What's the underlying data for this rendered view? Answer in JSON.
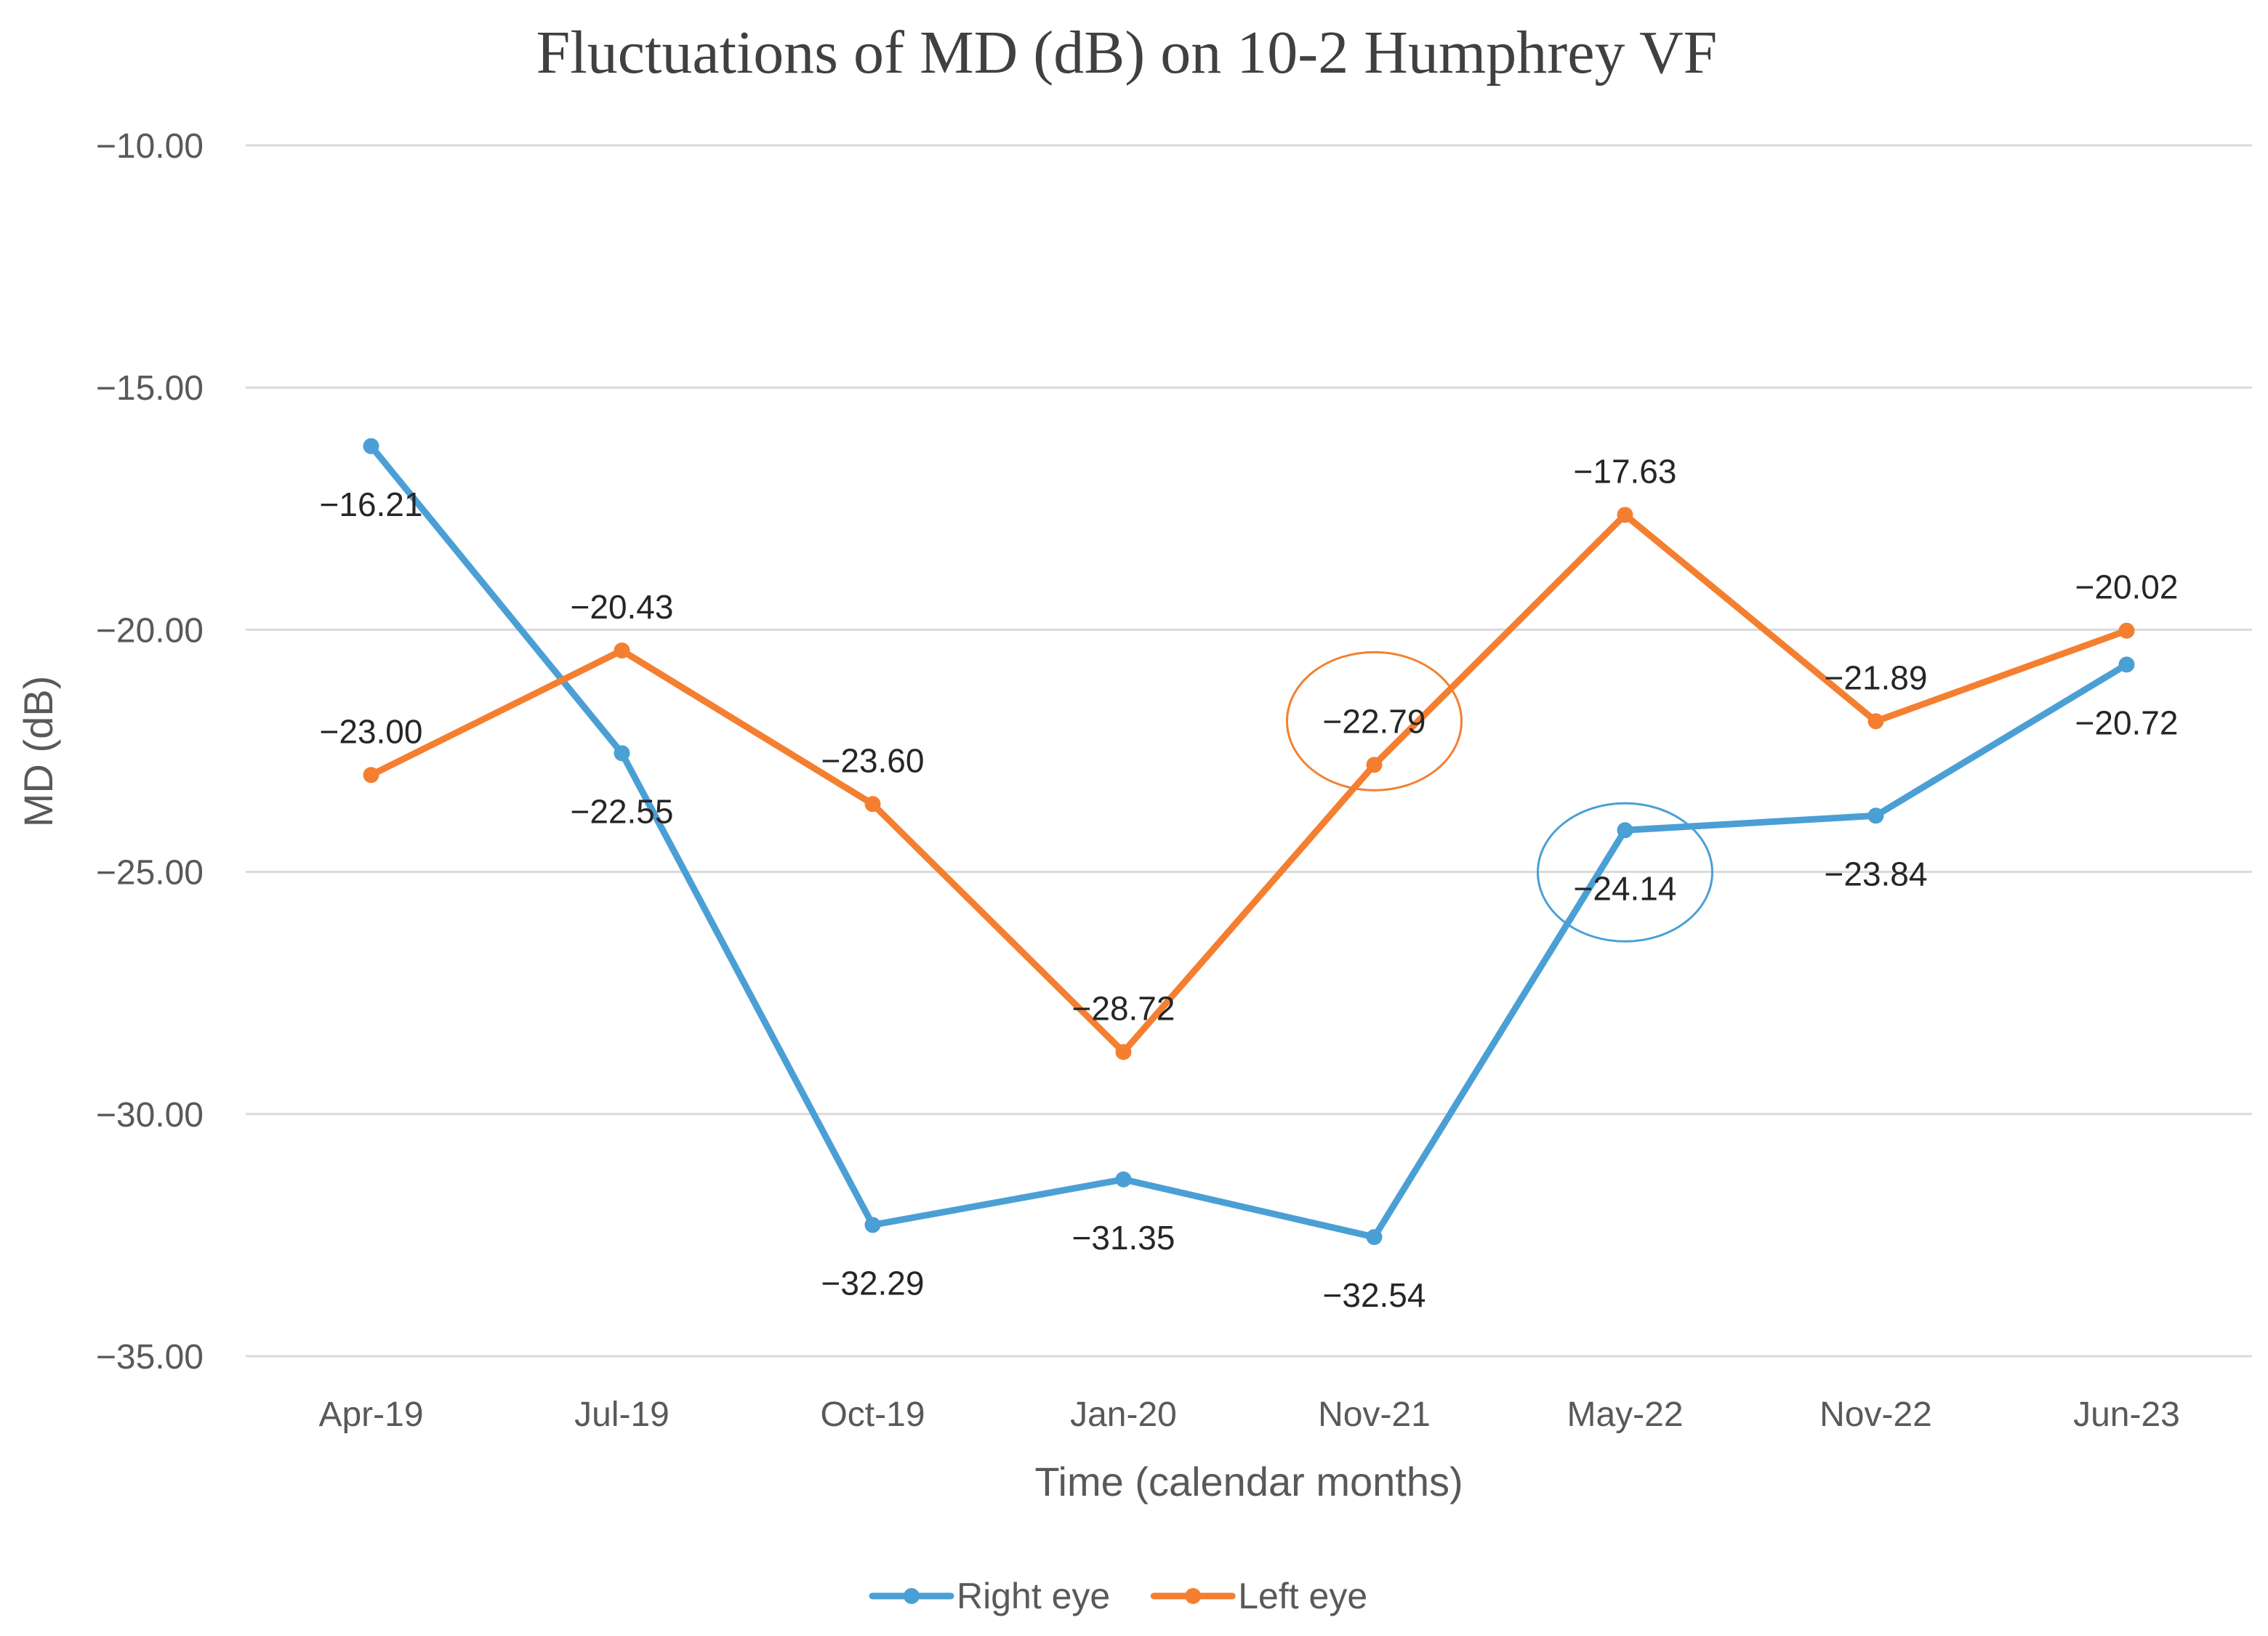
{
  "chart_data": {
    "type": "line",
    "title": "Fluctuations of MD (dB) on 10-2 Humphrey VF",
    "xlabel": "Time (calendar months)",
    "ylabel": "MD (dB)",
    "ylim": [
      -35,
      -10
    ],
    "yticks": [
      -10,
      -15,
      -20,
      -25,
      -30,
      -35
    ],
    "ytick_labels": [
      "−10.00",
      "−15.00",
      "−20.00",
      "−25.00",
      "−30.00",
      "−35.00"
    ],
    "categories": [
      "Apr-19",
      "Jul-19",
      "Oct-19",
      "Jan-20",
      "Nov-21",
      "May-22",
      "Nov-22",
      "Jun-23"
    ],
    "grid": true,
    "legend_position": "bottom-center",
    "series": [
      {
        "name": "Right eye",
        "color": "#4a9fd5",
        "values": [
          -16.21,
          -22.55,
          -32.29,
          -31.35,
          -32.54,
          -24.14,
          -23.84,
          -20.72
        ],
        "labels": [
          "−16.21",
          "−22.55",
          "−32.29",
          "−31.35",
          "−32.54",
          "−24.14",
          "−23.84",
          "−20.72"
        ],
        "label_positions": [
          "below",
          "below",
          "below",
          "below",
          "below",
          "below",
          "below",
          "below"
        ]
      },
      {
        "name": "Left eye",
        "color": "#f47f30",
        "values": [
          -23.0,
          -20.43,
          -23.6,
          -28.72,
          -22.79,
          -17.63,
          -21.89,
          -20.02
        ],
        "labels": [
          "−23.00",
          "−20.43",
          "−23.60",
          "−28.72",
          "−22.79",
          "−17.63",
          "−21.89",
          "−20.02"
        ],
        "label_positions": [
          "above",
          "above",
          "above",
          "above",
          "above",
          "above",
          "above",
          "above"
        ]
      }
    ],
    "annotations": [
      {
        "type": "circle",
        "series": "Left eye",
        "category": "Nov-21",
        "color": "#f47f30"
      },
      {
        "type": "circle",
        "series": "Right eye",
        "category": "May-22",
        "color": "#4a9fd5"
      }
    ]
  }
}
